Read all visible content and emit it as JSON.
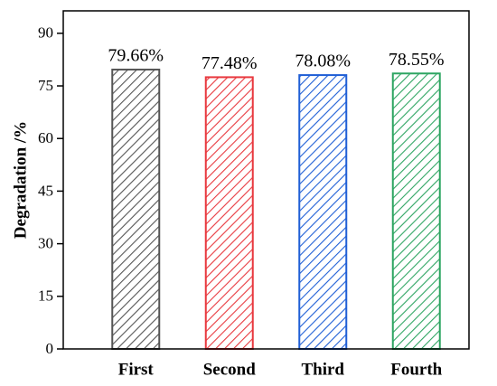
{
  "chart_data": {
    "type": "bar",
    "y_label": "Degradation /%",
    "categories": [
      "First",
      "Second",
      "Third",
      "Fourth"
    ],
    "values": [
      79.66,
      77.48,
      78.08,
      78.55
    ],
    "value_labels": [
      "79.66%",
      "77.48%",
      "78.08%",
      "78.55%"
    ],
    "colors": [
      "#555555",
      "#e8393f",
      "#1f5fd6",
      "#2ea562"
    ],
    "pattern": "hatch",
    "ylim": [
      0,
      96.4
    ],
    "yticks": [
      0,
      15,
      30,
      45,
      60,
      75,
      90
    ],
    "grid": false
  }
}
